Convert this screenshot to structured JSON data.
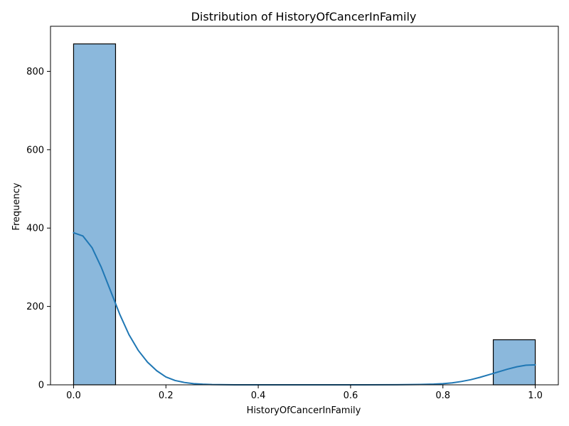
{
  "chart_data": {
    "type": "bar",
    "title": "Distribution of HistoryOfCancerInFamily",
    "xlabel": "HistoryOfCancerInFamily",
    "ylabel": "Frequency",
    "xlim": [
      -0.05,
      1.05
    ],
    "ylim": [
      0,
      915
    ],
    "xticks": [
      0.0,
      0.2,
      0.4,
      0.6,
      0.8,
      1.0
    ],
    "xtick_labels": [
      "0.0",
      "0.2",
      "0.4",
      "0.6",
      "0.8",
      "1.0"
    ],
    "yticks": [
      0,
      200,
      400,
      600,
      800
    ],
    "ytick_labels": [
      "0",
      "200",
      "400",
      "600",
      "800"
    ],
    "bins": [
      {
        "x0": 0.0,
        "x1": 0.0909,
        "count": 870
      },
      {
        "x0": 0.9091,
        "x1": 1.0,
        "count": 115
      }
    ],
    "kde": {
      "x": [
        0.0,
        0.02,
        0.04,
        0.06,
        0.08,
        0.1,
        0.12,
        0.14,
        0.16,
        0.18,
        0.2,
        0.22,
        0.24,
        0.26,
        0.28,
        0.3,
        0.35,
        0.4,
        0.5,
        0.6,
        0.7,
        0.75,
        0.78,
        0.8,
        0.82,
        0.84,
        0.86,
        0.88,
        0.9,
        0.92,
        0.94,
        0.96,
        0.98,
        1.0
      ],
      "y": [
        388,
        380,
        350,
        300,
        240,
        180,
        128,
        88,
        58,
        36,
        20,
        11,
        6,
        3,
        1.5,
        0.6,
        0.1,
        0,
        0,
        0,
        0.2,
        0.8,
        1.8,
        3,
        5,
        8.5,
        13,
        19,
        26,
        33,
        40,
        46,
        50,
        51
      ]
    },
    "colors": {
      "bar_fill": "#8bb8dc",
      "bar_edge": "#000000",
      "kde_line": "#1f77b4",
      "axis": "#000000"
    },
    "grid": false
  }
}
